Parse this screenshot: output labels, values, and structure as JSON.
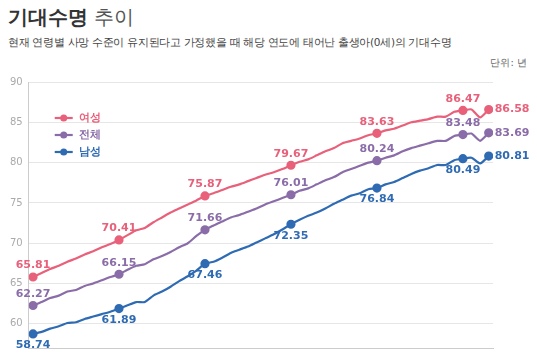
{
  "chart_data": {
    "type": "line",
    "title": "기대수명 추이",
    "subtitle": "현재 연령별 사망 수준이 유지된다고 가정했을 때 해당 연도에 태어난 출생아(0세)의 기대수명",
    "note": "단위: 년",
    "categories": [
      null,
      null,
      null,
      null,
      null,
      null,
      null,
      null,
      null,
      null,
      null,
      null,
      null,
      null,
      null,
      null,
      null,
      null,
      null,
      null,
      null,
      null,
      null,
      null,
      null,
      null,
      null,
      null,
      null,
      null,
      null,
      null,
      null,
      null,
      null,
      null,
      null,
      null,
      null,
      null,
      null,
      null,
      null,
      null,
      null,
      null,
      null,
      null,
      null,
      null,
      null,
      null,
      null,
      null
    ],
    "series": [
      {
        "name": "여성",
        "color": "#e8607a",
        "values": [
          65.81,
          66.3,
          66.8,
          67.2,
          67.7,
          68.1,
          68.6,
          69.0,
          69.5,
          69.9,
          70.41,
          71.0,
          71.6,
          71.9,
          72.6,
          73.2,
          73.8,
          74.3,
          74.8,
          75.3,
          75.87,
          76.2,
          76.6,
          77.0,
          77.3,
          77.7,
          78.1,
          78.5,
          78.8,
          79.2,
          79.67,
          80.1,
          80.4,
          80.9,
          81.4,
          81.8,
          82.4,
          82.7,
          83.0,
          83.4,
          83.63,
          84.0,
          84.2,
          84.6,
          85.0,
          85.2,
          85.4,
          85.7,
          85.7,
          86.3,
          86.47,
          86.6,
          85.6,
          86.58
        ],
        "value_labels": [
          "65.81",
          null,
          null,
          null,
          null,
          null,
          null,
          null,
          null,
          null,
          "70.41",
          null,
          null,
          null,
          null,
          null,
          null,
          null,
          null,
          null,
          "75.87",
          null,
          null,
          null,
          null,
          null,
          null,
          null,
          null,
          null,
          "79.67",
          null,
          null,
          null,
          null,
          null,
          null,
          null,
          null,
          null,
          "83.63",
          null,
          null,
          null,
          null,
          null,
          null,
          null,
          null,
          null,
          "86.47",
          null,
          null,
          "86.58"
        ]
      },
      {
        "name": "전체",
        "color": "#8a6ca8",
        "values": [
          62.27,
          62.7,
          63.2,
          63.5,
          64.0,
          64.2,
          64.7,
          65.0,
          65.4,
          65.8,
          66.15,
          66.7,
          67.2,
          67.4,
          68.0,
          68.4,
          68.9,
          69.5,
          70.0,
          70.9,
          71.66,
          72.2,
          72.7,
          73.2,
          73.5,
          73.9,
          74.3,
          74.8,
          75.2,
          75.6,
          76.01,
          76.5,
          76.8,
          77.3,
          77.8,
          78.2,
          78.8,
          79.2,
          79.6,
          80.0,
          80.24,
          80.6,
          80.9,
          81.4,
          81.8,
          82.1,
          82.4,
          82.7,
          82.7,
          83.3,
          83.48,
          83.6,
          82.7,
          83.69
        ],
        "value_labels": [
          "62.27",
          null,
          null,
          null,
          null,
          null,
          null,
          null,
          null,
          null,
          "66.15",
          null,
          null,
          null,
          null,
          null,
          null,
          null,
          null,
          null,
          "71.66",
          null,
          null,
          null,
          null,
          null,
          null,
          null,
          null,
          null,
          "76.01",
          null,
          null,
          null,
          null,
          null,
          null,
          null,
          null,
          null,
          "80.24",
          null,
          null,
          null,
          null,
          null,
          null,
          null,
          null,
          null,
          "83.48",
          null,
          null,
          "83.69"
        ]
      },
      {
        "name": "남성",
        "color": "#2f6bb3",
        "values": [
          58.74,
          59.0,
          59.4,
          59.7,
          60.1,
          60.2,
          60.6,
          60.9,
          61.2,
          61.5,
          61.89,
          62.3,
          62.7,
          62.7,
          63.5,
          64.0,
          64.6,
          65.3,
          65.9,
          66.6,
          67.46,
          67.7,
          68.2,
          68.8,
          69.2,
          69.6,
          70.1,
          70.6,
          71.1,
          71.7,
          72.35,
          72.9,
          73.4,
          73.8,
          74.3,
          74.9,
          75.4,
          75.9,
          76.2,
          76.7,
          76.84,
          77.3,
          77.6,
          78.1,
          78.6,
          79.0,
          79.3,
          79.7,
          79.7,
          80.3,
          80.49,
          80.6,
          79.9,
          80.81
        ],
        "value_labels": [
          "58.74",
          null,
          null,
          null,
          null,
          null,
          null,
          null,
          null,
          null,
          "61.89",
          null,
          null,
          null,
          null,
          null,
          null,
          null,
          null,
          null,
          "67.46",
          null,
          null,
          null,
          null,
          null,
          null,
          null,
          null,
          null,
          "72.35",
          null,
          null,
          null,
          null,
          null,
          null,
          null,
          null,
          null,
          "76.84",
          null,
          null,
          null,
          null,
          null,
          null,
          null,
          null,
          null,
          "80.49",
          null,
          null,
          "80.81"
        ]
      }
    ],
    "ylim": [
      57,
      90
    ],
    "yticks": [
      60,
      65,
      70,
      75,
      80,
      85,
      90
    ],
    "grid": true,
    "legend": "upper left",
    "tick_labels": "y",
    "marker": "circle"
  }
}
